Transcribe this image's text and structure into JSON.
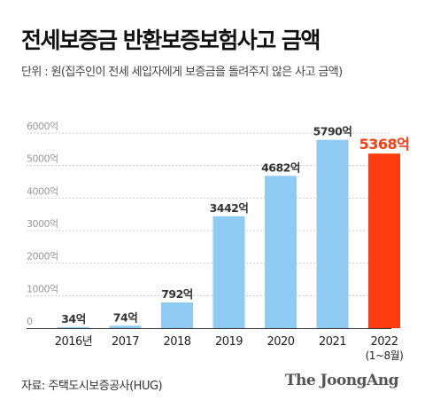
{
  "header": {
    "title": "전세보증금 반환보증보험사고 금액",
    "subtitle": "단위 : 원(집주인이 전세 세입자에게 보증금을 돌려주지 않은 사고 금액)"
  },
  "footer": {
    "source": "자료: 주택도시보증공사(HUG)",
    "brand": "The JoongAng"
  },
  "colors": {
    "bar": "#8ecaf2",
    "highlight_bar": "#ff3b0f",
    "grid": "#cccccc",
    "axis_label": "#999999",
    "value_label": "#333333"
  },
  "chart_data": {
    "type": "bar",
    "categories": [
      "2016년",
      "2017",
      "2018",
      "2019",
      "2020",
      "2021",
      "2022"
    ],
    "category_sublabels": [
      "",
      "",
      "",
      "",
      "",
      "",
      "(1~8월)"
    ],
    "values": [
      34,
      74,
      792,
      3442,
      4682,
      5790,
      5368
    ],
    "value_labels": [
      "34억",
      "74억",
      "792억",
      "3442억",
      "4682억",
      "5790억",
      "5368억"
    ],
    "highlight_index": 6,
    "yticks": [
      0,
      1000,
      2000,
      3000,
      4000,
      5000,
      6000
    ],
    "ytick_labels": [
      "0",
      "1000억",
      "2000억",
      "3000억",
      "4000억",
      "5000억",
      "6000억"
    ],
    "ylim": [
      0,
      6000
    ],
    "grid": true,
    "legend": "none"
  }
}
